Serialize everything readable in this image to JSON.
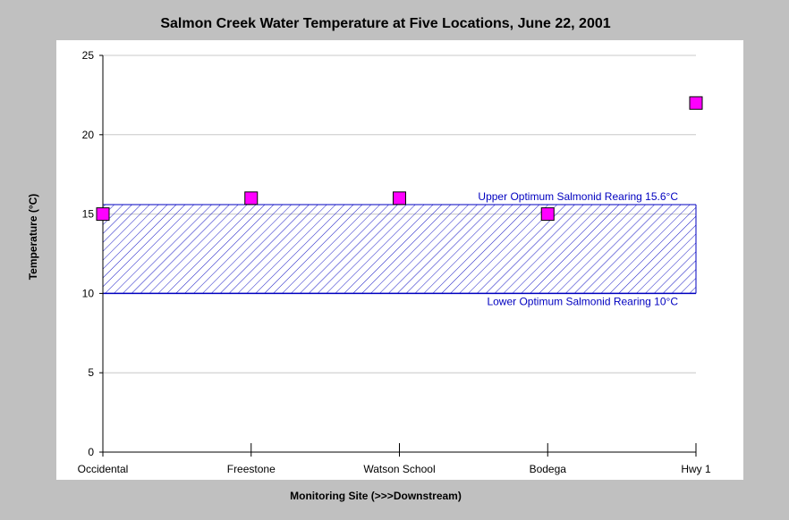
{
  "chart_data": {
    "type": "scatter",
    "title": "Salmon Creek Water Temperature at Five Locations, June 22, 2001",
    "xlabel": "Monitoring Site (>>>Downstream)",
    "ylabel": "Temperature (°C)",
    "categories": [
      "Occidental",
      "Freestone",
      "Watson School",
      "Bodega",
      "Hwy 1"
    ],
    "values": [
      15,
      16,
      16,
      15,
      22
    ],
    "ylim": [
      0,
      25
    ],
    "yticks": [
      0,
      5,
      10,
      15,
      20,
      25
    ],
    "grid": true,
    "marker_color": "#ff00ff",
    "band": {
      "low": 10,
      "high": 15.6,
      "color": "#0000c0",
      "upper_label": "Upper Optimum Salmonid Rearing 15.6°C",
      "lower_label": "Lower Optimum Salmonid Rearing 10°C"
    }
  }
}
